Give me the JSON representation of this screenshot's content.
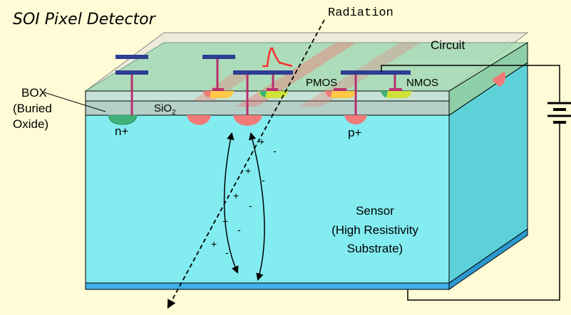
{
  "title": "SOI Pixel Detector",
  "labels": {
    "radiation": "Radiation",
    "circuit": "Circuit",
    "box": "BOX",
    "box_sub1": "(Buried",
    "box_sub2": "Oxide)",
    "sio2": "SiO",
    "sio2_sub": "2",
    "pmos": "PMOS",
    "nmos": "NMOS",
    "n_plus": "n+",
    "p_plus": "p+",
    "sensor_line1": "Sensor",
    "sensor_line2": "(High Resistivity",
    "sensor_line3": "Substrate)"
  },
  "charge_signs": {
    "plus": "+",
    "minus": "-"
  },
  "colors": {
    "background": "#fffbd6",
    "sensor_front": "#82ecf0",
    "sensor_side": "#5cd2d8",
    "circuit_layer": "#9ed8b2",
    "box_layer": "#b4d0c8",
    "contact": "#b8306e",
    "electrode": "#2e3e94",
    "implant_red": "#f07a78",
    "implant_green": "#3fb27a",
    "bottom_strip": "#40b0ea",
    "signal": "#ff3030"
  }
}
